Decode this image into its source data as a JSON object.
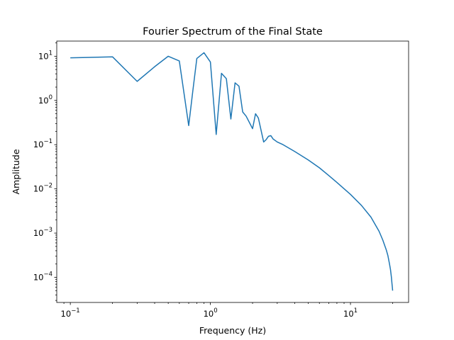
{
  "chart_data": {
    "type": "line",
    "title": "Fourier Spectrum of the Final State",
    "xlabel": "Frequency (Hz)",
    "ylabel": "Amplitude",
    "xscale": "log",
    "yscale": "log",
    "xlim": [
      0.08,
      26
    ],
    "ylim": [
      2.7e-05,
      22
    ],
    "grid": false,
    "legend": "none",
    "line_color": "#1f77b4",
    "x_ticks": [
      {
        "value": 0.1,
        "base": "10",
        "exp": "−1"
      },
      {
        "value": 1,
        "base": "10",
        "exp": "0"
      },
      {
        "value": 10,
        "base": "10",
        "exp": "1"
      }
    ],
    "y_ticks": [
      {
        "value": 0.0001,
        "base": "10",
        "exp": "−4"
      },
      {
        "value": 0.001,
        "base": "10",
        "exp": "−3"
      },
      {
        "value": 0.01,
        "base": "10",
        "exp": "−2"
      },
      {
        "value": 0.1,
        "base": "10",
        "exp": "−1"
      },
      {
        "value": 1,
        "base": "10",
        "exp": "0"
      },
      {
        "value": 10,
        "base": "10",
        "exp": "1"
      }
    ],
    "series": [
      {
        "x": [
          0.1,
          0.2,
          0.3,
          0.4,
          0.5,
          0.6,
          0.7,
          0.75,
          0.8,
          0.9,
          1.0,
          1.1,
          1.2,
          1.3,
          1.4,
          1.5,
          1.6,
          1.7,
          1.8,
          2.0,
          2.1,
          2.2,
          2.4,
          2.5,
          2.6,
          2.7,
          2.8,
          3.0,
          3.3,
          4,
          5,
          6,
          7,
          8,
          10,
          12,
          14,
          16,
          17,
          18,
          18.5,
          19,
          19.3,
          19.6,
          19.8,
          19.9,
          20
        ],
        "y": [
          9.2,
          9.7,
          2.7,
          5.8,
          10.0,
          7.8,
          0.27,
          1.7,
          8.9,
          12.0,
          7.4,
          0.17,
          4.1,
          3.1,
          0.38,
          2.5,
          2.1,
          0.55,
          0.44,
          0.23,
          0.5,
          0.4,
          0.115,
          0.13,
          0.155,
          0.16,
          0.135,
          0.115,
          0.1,
          0.07,
          0.045,
          0.03,
          0.02,
          0.014,
          0.0075,
          0.0042,
          0.0023,
          0.0011,
          0.0007,
          0.00042,
          0.00031,
          0.0002,
          0.00015,
          0.0001,
          7e-05,
          6e-05,
          5e-05
        ]
      }
    ]
  }
}
